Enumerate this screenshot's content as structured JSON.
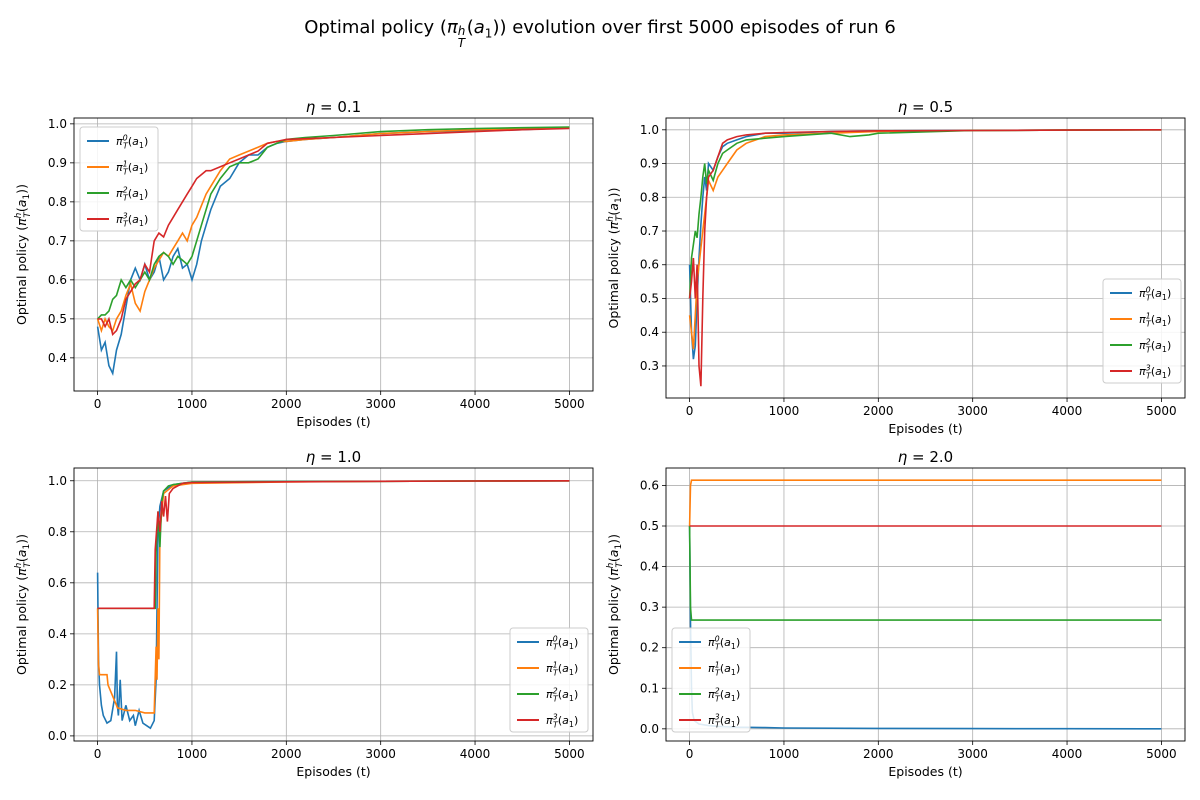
{
  "figure": {
    "title": "Optimal policy (π_T^h(a_1)) evolution over first 5000 episodes of run 6"
  },
  "colors": {
    "series": [
      "#1f77b4",
      "#ff7f0e",
      "#2ca02c",
      "#d62728"
    ],
    "grid": "#b0b0b0",
    "axes": "#000000"
  },
  "chart_data": [
    {
      "type": "line",
      "title": "η = 0.1",
      "xlabel": "Episodes (t)",
      "ylabel": "Optimal policy (π_T^h(a_1))",
      "xlim": [
        -250,
        5250
      ],
      "ylim": [
        0.315,
        1.015
      ],
      "xticks": [
        0,
        1000,
        2000,
        3000,
        4000,
        5000
      ],
      "yticks": [
        0.4,
        0.5,
        0.6,
        0.7,
        0.8,
        0.9,
        1.0
      ],
      "ytick_labels": [
        "0.4",
        "0.5",
        "0.6",
        "0.7",
        "0.8",
        "0.9",
        "1.0"
      ],
      "grid": true,
      "legend_position": "upper left",
      "series": [
        {
          "name": "π_T^0(a_1)",
          "x": [
            0,
            40,
            80,
            120,
            160,
            200,
            250,
            300,
            350,
            400,
            450,
            500,
            550,
            600,
            650,
            700,
            750,
            800,
            850,
            900,
            950,
            1000,
            1050,
            1100,
            1150,
            1200,
            1300,
            1400,
            1500,
            1600,
            1700,
            1800,
            1900,
            2000,
            2200,
            2500,
            3000,
            3500,
            4000,
            4500,
            5000
          ],
          "y": [
            0.48,
            0.42,
            0.44,
            0.38,
            0.36,
            0.42,
            0.46,
            0.53,
            0.6,
            0.63,
            0.6,
            0.64,
            0.6,
            0.62,
            0.66,
            0.6,
            0.62,
            0.66,
            0.68,
            0.63,
            0.64,
            0.6,
            0.64,
            0.7,
            0.74,
            0.78,
            0.84,
            0.86,
            0.9,
            0.92,
            0.92,
            0.94,
            0.95,
            0.955,
            0.96,
            0.965,
            0.975,
            0.98,
            0.982,
            0.985,
            0.99
          ]
        },
        {
          "name": "π_T^1(a_1)",
          "x": [
            0,
            40,
            80,
            120,
            160,
            200,
            250,
            300,
            350,
            400,
            450,
            500,
            550,
            600,
            650,
            700,
            750,
            800,
            850,
            900,
            950,
            1000,
            1050,
            1100,
            1150,
            1200,
            1300,
            1400,
            1500,
            1600,
            1700,
            1800,
            1900,
            2000,
            2200,
            2500,
            3000,
            3500,
            4000,
            4500,
            5000
          ],
          "y": [
            0.5,
            0.47,
            0.5,
            0.48,
            0.47,
            0.5,
            0.52,
            0.56,
            0.59,
            0.54,
            0.52,
            0.57,
            0.6,
            0.63,
            0.65,
            0.67,
            0.66,
            0.68,
            0.7,
            0.72,
            0.7,
            0.74,
            0.76,
            0.79,
            0.82,
            0.84,
            0.88,
            0.91,
            0.92,
            0.93,
            0.94,
            0.95,
            0.955,
            0.955,
            0.96,
            0.965,
            0.975,
            0.98,
            0.985,
            0.988,
            0.99
          ]
        },
        {
          "name": "π_T^2(a_1)",
          "x": [
            0,
            40,
            80,
            120,
            160,
            200,
            250,
            300,
            350,
            400,
            450,
            500,
            550,
            600,
            650,
            700,
            750,
            800,
            850,
            900,
            950,
            1000,
            1050,
            1100,
            1150,
            1200,
            1300,
            1400,
            1500,
            1600,
            1700,
            1800,
            1900,
            2000,
            2200,
            2500,
            3000,
            3500,
            4000,
            4500,
            5000
          ],
          "y": [
            0.5,
            0.51,
            0.51,
            0.52,
            0.55,
            0.56,
            0.6,
            0.58,
            0.6,
            0.58,
            0.6,
            0.62,
            0.6,
            0.64,
            0.66,
            0.67,
            0.66,
            0.64,
            0.66,
            0.65,
            0.64,
            0.66,
            0.7,
            0.74,
            0.78,
            0.82,
            0.86,
            0.89,
            0.9,
            0.9,
            0.91,
            0.94,
            0.95,
            0.96,
            0.965,
            0.97,
            0.98,
            0.985,
            0.988,
            0.99,
            0.992
          ]
        },
        {
          "name": "π_T^3(a_1)",
          "x": [
            0,
            40,
            80,
            120,
            160,
            200,
            250,
            300,
            350,
            400,
            450,
            500,
            550,
            600,
            650,
            700,
            750,
            800,
            850,
            900,
            950,
            1000,
            1050,
            1100,
            1150,
            1200,
            1300,
            1400,
            1500,
            1600,
            1700,
            1800,
            1900,
            2000,
            2200,
            2500,
            3000,
            3500,
            4000,
            4500,
            5000
          ],
          "y": [
            0.5,
            0.5,
            0.48,
            0.5,
            0.46,
            0.47,
            0.5,
            0.55,
            0.57,
            0.59,
            0.6,
            0.64,
            0.62,
            0.7,
            0.72,
            0.71,
            0.74,
            0.76,
            0.78,
            0.8,
            0.82,
            0.84,
            0.86,
            0.87,
            0.88,
            0.88,
            0.89,
            0.9,
            0.91,
            0.92,
            0.93,
            0.95,
            0.955,
            0.96,
            0.962,
            0.965,
            0.97,
            0.975,
            0.98,
            0.985,
            0.988
          ]
        }
      ]
    },
    {
      "type": "line",
      "title": "η = 0.5",
      "xlabel": "Episodes (t)",
      "ylabel": "Optimal policy (π_T^h(a_1))",
      "xlim": [
        -250,
        5250
      ],
      "ylim": [
        0.205,
        1.035
      ],
      "xticks": [
        0,
        1000,
        2000,
        3000,
        4000,
        5000
      ],
      "yticks": [
        0.3,
        0.4,
        0.5,
        0.6,
        0.7,
        0.8,
        0.9,
        1.0
      ],
      "ytick_labels": [
        "0.3",
        "0.4",
        "0.5",
        "0.6",
        "0.7",
        "0.8",
        "0.9",
        "1.0"
      ],
      "grid": true,
      "legend_position": "lower right",
      "series": [
        {
          "name": "π_T^0(a_1)",
          "x": [
            0,
            20,
            40,
            60,
            80,
            100,
            120,
            140,
            160,
            180,
            200,
            250,
            300,
            350,
            400,
            500,
            600,
            800,
            1000,
            1500,
            2000,
            3000,
            4000,
            5000
          ],
          "y": [
            0.6,
            0.4,
            0.32,
            0.36,
            0.5,
            0.62,
            0.72,
            0.8,
            0.86,
            0.82,
            0.9,
            0.88,
            0.92,
            0.95,
            0.96,
            0.97,
            0.98,
            0.99,
            0.99,
            0.995,
            0.997,
            0.998,
            0.999,
            1.0
          ]
        },
        {
          "name": "π_T^1(a_1)",
          "x": [
            0,
            20,
            40,
            60,
            80,
            100,
            120,
            140,
            160,
            180,
            200,
            250,
            300,
            350,
            400,
            500,
            600,
            800,
            1000,
            1500,
            2000,
            3000,
            4000,
            5000
          ],
          "y": [
            0.45,
            0.4,
            0.35,
            0.45,
            0.55,
            0.6,
            0.65,
            0.7,
            0.75,
            0.8,
            0.85,
            0.82,
            0.86,
            0.88,
            0.9,
            0.94,
            0.96,
            0.98,
            0.985,
            0.99,
            0.995,
            0.998,
            0.999,
            1.0
          ]
        },
        {
          "name": "π_T^2(a_1)",
          "x": [
            0,
            20,
            40,
            60,
            80,
            100,
            120,
            140,
            160,
            180,
            200,
            250,
            300,
            350,
            400,
            500,
            600,
            800,
            1000,
            1500,
            1700,
            1900,
            2000,
            3000,
            4000,
            5000
          ],
          "y": [
            0.5,
            0.62,
            0.66,
            0.7,
            0.68,
            0.75,
            0.8,
            0.86,
            0.9,
            0.84,
            0.88,
            0.85,
            0.9,
            0.93,
            0.94,
            0.96,
            0.97,
            0.975,
            0.98,
            0.99,
            0.98,
            0.985,
            0.99,
            0.998,
            0.999,
            1.0
          ]
        },
        {
          "name": "π_T^3(a_1)",
          "x": [
            0,
            20,
            40,
            60,
            80,
            100,
            120,
            140,
            160,
            180,
            200,
            250,
            300,
            350,
            400,
            500,
            600,
            800,
            1000,
            1500,
            2000,
            3000,
            4000,
            5000
          ],
          "y": [
            0.5,
            0.55,
            0.62,
            0.5,
            0.6,
            0.3,
            0.24,
            0.5,
            0.7,
            0.8,
            0.86,
            0.88,
            0.92,
            0.96,
            0.97,
            0.98,
            0.985,
            0.99,
            0.992,
            0.995,
            0.997,
            0.998,
            0.999,
            1.0
          ]
        }
      ]
    },
    {
      "type": "line",
      "title": "η = 1.0",
      "xlabel": "Episodes (t)",
      "ylabel": "Optimal policy (π_T^h(a_1))",
      "xlim": [
        -250,
        5250
      ],
      "ylim": [
        -0.02,
        1.05
      ],
      "xticks": [
        0,
        1000,
        2000,
        3000,
        4000,
        5000
      ],
      "yticks": [
        0.0,
        0.2,
        0.4,
        0.6,
        0.8,
        1.0
      ],
      "ytick_labels": [
        "0.0",
        "0.2",
        "0.4",
        "0.6",
        "0.8",
        "1.0"
      ],
      "grid": true,
      "legend_position": "lower right",
      "series": [
        {
          "name": "π_T^0(a_1)",
          "x": [
            0,
            10,
            20,
            40,
            60,
            100,
            140,
            180,
            200,
            210,
            220,
            240,
            260,
            300,
            340,
            380,
            400,
            440,
            480,
            520,
            560,
            600,
            620,
            640,
            660,
            700,
            800,
            900,
            1000,
            2000,
            3000,
            4000,
            5000
          ],
          "y": [
            0.64,
            0.3,
            0.2,
            0.12,
            0.08,
            0.05,
            0.06,
            0.15,
            0.33,
            0.12,
            0.08,
            0.22,
            0.06,
            0.12,
            0.06,
            0.08,
            0.04,
            0.1,
            0.05,
            0.04,
            0.03,
            0.06,
            0.22,
            0.8,
            0.9,
            0.96,
            0.985,
            0.99,
            0.995,
            0.997,
            0.998,
            0.999,
            1.0
          ]
        },
        {
          "name": "π_T^1(a_1)",
          "x": [
            0,
            10,
            20,
            100,
            110,
            200,
            210,
            300,
            400,
            500,
            600,
            620,
            630,
            640,
            650,
            660,
            700,
            800,
            1000,
            2000,
            3000,
            4000,
            5000
          ],
          "y": [
            0.5,
            0.28,
            0.24,
            0.24,
            0.2,
            0.12,
            0.11,
            0.1,
            0.1,
            0.09,
            0.09,
            0.35,
            0.22,
            0.5,
            0.3,
            0.8,
            0.95,
            0.98,
            0.99,
            0.995,
            0.998,
            0.999,
            1.0
          ]
        },
        {
          "name": "π_T^2(a_1)",
          "x": [
            0,
            610,
            620,
            640,
            660,
            680,
            700,
            750,
            800,
            900,
            1000,
            2000,
            3000,
            4000,
            5000
          ],
          "y": [
            0.5,
            0.5,
            0.72,
            0.88,
            0.74,
            0.92,
            0.96,
            0.98,
            0.985,
            0.99,
            0.995,
            0.997,
            0.998,
            0.999,
            1.0
          ]
        },
        {
          "name": "π_T^3(a_1)",
          "x": [
            0,
            600,
            610,
            640,
            660,
            680,
            700,
            720,
            740,
            760,
            800,
            900,
            1000,
            2000,
            3000,
            4000,
            5000
          ],
          "y": [
            0.5,
            0.5,
            0.73,
            0.88,
            0.8,
            0.92,
            0.86,
            0.94,
            0.84,
            0.95,
            0.97,
            0.99,
            0.993,
            0.996,
            0.998,
            0.999,
            1.0
          ]
        }
      ]
    },
    {
      "type": "line",
      "title": "η = 2.0",
      "xlabel": "Episodes (t)",
      "ylabel": "Optimal policy (π_T^h(a_1))",
      "xlim": [
        -250,
        5250
      ],
      "ylim": [
        -0.03,
        0.643
      ],
      "xticks": [
        0,
        1000,
        2000,
        3000,
        4000,
        5000
      ],
      "yticks": [
        0.0,
        0.1,
        0.2,
        0.3,
        0.4,
        0.5,
        0.6
      ],
      "ytick_labels": [
        "0.0",
        "0.1",
        "0.2",
        "0.3",
        "0.4",
        "0.5",
        "0.6"
      ],
      "grid": true,
      "legend_position": "lower left",
      "series": [
        {
          "name": "π_T^0(a_1)",
          "x": [
            0,
            10,
            20,
            30,
            50,
            100,
            200,
            300,
            500,
            800,
            1000,
            2000,
            3000,
            4000,
            5000
          ],
          "y": [
            0.5,
            0.26,
            0.1,
            0.04,
            0.02,
            0.012,
            0.008,
            0.006,
            0.004,
            0.003,
            0.002,
            0.001,
            0.0005,
            0.0003,
            0.0001
          ]
        },
        {
          "name": "π_T^1(a_1)",
          "x": [
            0,
            10,
            20,
            5000
          ],
          "y": [
            0.5,
            0.6,
            0.613,
            0.613
          ]
        },
        {
          "name": "π_T^2(a_1)",
          "x": [
            0,
            10,
            20,
            5000
          ],
          "y": [
            0.5,
            0.3,
            0.268,
            0.268
          ]
        },
        {
          "name": "π_T^3(a_1)",
          "x": [
            0,
            10,
            5000
          ],
          "y": [
            0.5,
            0.5,
            0.5
          ]
        }
      ]
    }
  ]
}
